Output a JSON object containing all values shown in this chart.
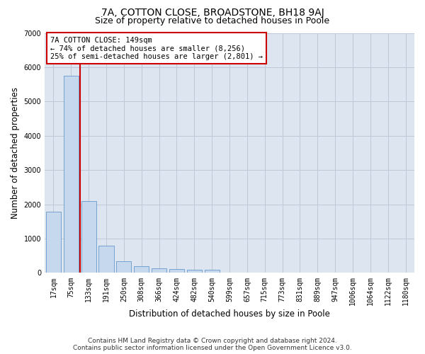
{
  "title_line1": "7A, COTTON CLOSE, BROADSTONE, BH18 9AJ",
  "title_line2": "Size of property relative to detached houses in Poole",
  "xlabel": "Distribution of detached houses by size in Poole",
  "ylabel": "Number of detached properties",
  "categories": [
    "17sqm",
    "75sqm",
    "133sqm",
    "191sqm",
    "250sqm",
    "308sqm",
    "366sqm",
    "424sqm",
    "482sqm",
    "540sqm",
    "599sqm",
    "657sqm",
    "715sqm",
    "773sqm",
    "831sqm",
    "889sqm",
    "947sqm",
    "1006sqm",
    "1064sqm",
    "1122sqm",
    "1180sqm"
  ],
  "values": [
    1780,
    5750,
    2090,
    800,
    340,
    200,
    130,
    110,
    90,
    85,
    0,
    0,
    0,
    0,
    0,
    0,
    0,
    0,
    0,
    0,
    0
  ],
  "bar_color": "#c5d8ed",
  "bar_edge_color": "#6699cc",
  "vline_x": 1.5,
  "vline_color": "#cc0000",
  "annotation_text": "7A COTTON CLOSE: 149sqm\n← 74% of detached houses are smaller (8,256)\n25% of semi-detached houses are larger (2,801) →",
  "annotation_box_color": "#ffffff",
  "annotation_box_edge": "#cc0000",
  "ylim": [
    0,
    7000
  ],
  "yticks": [
    0,
    1000,
    2000,
    3000,
    4000,
    5000,
    6000,
    7000
  ],
  "grid_color": "#c0c8d8",
  "background_color": "#dde6f0",
  "footer_line1": "Contains HM Land Registry data © Crown copyright and database right 2024.",
  "footer_line2": "Contains public sector information licensed under the Open Government Licence v3.0.",
  "title_fontsize": 10,
  "subtitle_fontsize": 9,
  "xlabel_fontsize": 8.5,
  "ylabel_fontsize": 8.5,
  "tick_fontsize": 7,
  "annotation_fontsize": 7.5,
  "footer_fontsize": 6.5
}
